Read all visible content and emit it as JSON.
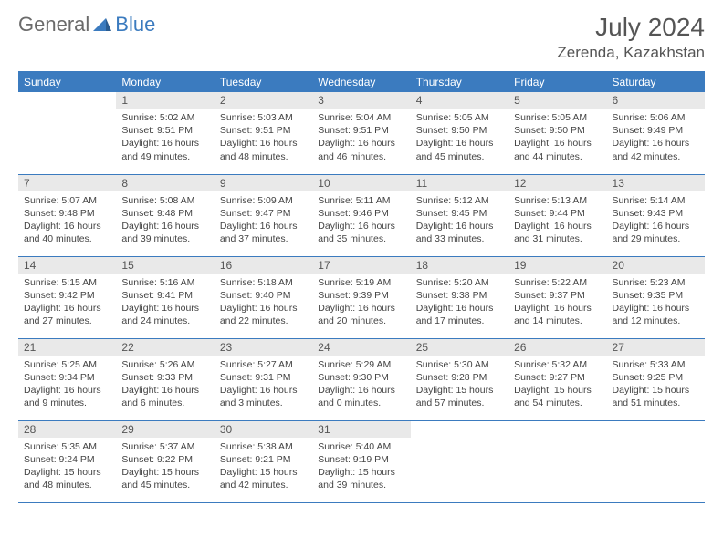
{
  "logo": {
    "text1": "General",
    "text2": "Blue"
  },
  "title": "July 2024",
  "location": "Zerenda, Kazakhstan",
  "colors": {
    "accent": "#3b7bbf",
    "header_bg": "#3b7bbf",
    "daynum_bg": "#e9e9e9",
    "text": "#444444",
    "title_text": "#555555"
  },
  "weekdays": [
    "Sunday",
    "Monday",
    "Tuesday",
    "Wednesday",
    "Thursday",
    "Friday",
    "Saturday"
  ],
  "weeks": [
    [
      null,
      {
        "d": "1",
        "sr": "Sunrise: 5:02 AM",
        "ss": "Sunset: 9:51 PM",
        "dl1": "Daylight: 16 hours",
        "dl2": "and 49 minutes."
      },
      {
        "d": "2",
        "sr": "Sunrise: 5:03 AM",
        "ss": "Sunset: 9:51 PM",
        "dl1": "Daylight: 16 hours",
        "dl2": "and 48 minutes."
      },
      {
        "d": "3",
        "sr": "Sunrise: 5:04 AM",
        "ss": "Sunset: 9:51 PM",
        "dl1": "Daylight: 16 hours",
        "dl2": "and 46 minutes."
      },
      {
        "d": "4",
        "sr": "Sunrise: 5:05 AM",
        "ss": "Sunset: 9:50 PM",
        "dl1": "Daylight: 16 hours",
        "dl2": "and 45 minutes."
      },
      {
        "d": "5",
        "sr": "Sunrise: 5:05 AM",
        "ss": "Sunset: 9:50 PM",
        "dl1": "Daylight: 16 hours",
        "dl2": "and 44 minutes."
      },
      {
        "d": "6",
        "sr": "Sunrise: 5:06 AM",
        "ss": "Sunset: 9:49 PM",
        "dl1": "Daylight: 16 hours",
        "dl2": "and 42 minutes."
      }
    ],
    [
      {
        "d": "7",
        "sr": "Sunrise: 5:07 AM",
        "ss": "Sunset: 9:48 PM",
        "dl1": "Daylight: 16 hours",
        "dl2": "and 40 minutes."
      },
      {
        "d": "8",
        "sr": "Sunrise: 5:08 AM",
        "ss": "Sunset: 9:48 PM",
        "dl1": "Daylight: 16 hours",
        "dl2": "and 39 minutes."
      },
      {
        "d": "9",
        "sr": "Sunrise: 5:09 AM",
        "ss": "Sunset: 9:47 PM",
        "dl1": "Daylight: 16 hours",
        "dl2": "and 37 minutes."
      },
      {
        "d": "10",
        "sr": "Sunrise: 5:11 AM",
        "ss": "Sunset: 9:46 PM",
        "dl1": "Daylight: 16 hours",
        "dl2": "and 35 minutes."
      },
      {
        "d": "11",
        "sr": "Sunrise: 5:12 AM",
        "ss": "Sunset: 9:45 PM",
        "dl1": "Daylight: 16 hours",
        "dl2": "and 33 minutes."
      },
      {
        "d": "12",
        "sr": "Sunrise: 5:13 AM",
        "ss": "Sunset: 9:44 PM",
        "dl1": "Daylight: 16 hours",
        "dl2": "and 31 minutes."
      },
      {
        "d": "13",
        "sr": "Sunrise: 5:14 AM",
        "ss": "Sunset: 9:43 PM",
        "dl1": "Daylight: 16 hours",
        "dl2": "and 29 minutes."
      }
    ],
    [
      {
        "d": "14",
        "sr": "Sunrise: 5:15 AM",
        "ss": "Sunset: 9:42 PM",
        "dl1": "Daylight: 16 hours",
        "dl2": "and 27 minutes."
      },
      {
        "d": "15",
        "sr": "Sunrise: 5:16 AM",
        "ss": "Sunset: 9:41 PM",
        "dl1": "Daylight: 16 hours",
        "dl2": "and 24 minutes."
      },
      {
        "d": "16",
        "sr": "Sunrise: 5:18 AM",
        "ss": "Sunset: 9:40 PM",
        "dl1": "Daylight: 16 hours",
        "dl2": "and 22 minutes."
      },
      {
        "d": "17",
        "sr": "Sunrise: 5:19 AM",
        "ss": "Sunset: 9:39 PM",
        "dl1": "Daylight: 16 hours",
        "dl2": "and 20 minutes."
      },
      {
        "d": "18",
        "sr": "Sunrise: 5:20 AM",
        "ss": "Sunset: 9:38 PM",
        "dl1": "Daylight: 16 hours",
        "dl2": "and 17 minutes."
      },
      {
        "d": "19",
        "sr": "Sunrise: 5:22 AM",
        "ss": "Sunset: 9:37 PM",
        "dl1": "Daylight: 16 hours",
        "dl2": "and 14 minutes."
      },
      {
        "d": "20",
        "sr": "Sunrise: 5:23 AM",
        "ss": "Sunset: 9:35 PM",
        "dl1": "Daylight: 16 hours",
        "dl2": "and 12 minutes."
      }
    ],
    [
      {
        "d": "21",
        "sr": "Sunrise: 5:25 AM",
        "ss": "Sunset: 9:34 PM",
        "dl1": "Daylight: 16 hours",
        "dl2": "and 9 minutes."
      },
      {
        "d": "22",
        "sr": "Sunrise: 5:26 AM",
        "ss": "Sunset: 9:33 PM",
        "dl1": "Daylight: 16 hours",
        "dl2": "and 6 minutes."
      },
      {
        "d": "23",
        "sr": "Sunrise: 5:27 AM",
        "ss": "Sunset: 9:31 PM",
        "dl1": "Daylight: 16 hours",
        "dl2": "and 3 minutes."
      },
      {
        "d": "24",
        "sr": "Sunrise: 5:29 AM",
        "ss": "Sunset: 9:30 PM",
        "dl1": "Daylight: 16 hours",
        "dl2": "and 0 minutes."
      },
      {
        "d": "25",
        "sr": "Sunrise: 5:30 AM",
        "ss": "Sunset: 9:28 PM",
        "dl1": "Daylight: 15 hours",
        "dl2": "and 57 minutes."
      },
      {
        "d": "26",
        "sr": "Sunrise: 5:32 AM",
        "ss": "Sunset: 9:27 PM",
        "dl1": "Daylight: 15 hours",
        "dl2": "and 54 minutes."
      },
      {
        "d": "27",
        "sr": "Sunrise: 5:33 AM",
        "ss": "Sunset: 9:25 PM",
        "dl1": "Daylight: 15 hours",
        "dl2": "and 51 minutes."
      }
    ],
    [
      {
        "d": "28",
        "sr": "Sunrise: 5:35 AM",
        "ss": "Sunset: 9:24 PM",
        "dl1": "Daylight: 15 hours",
        "dl2": "and 48 minutes."
      },
      {
        "d": "29",
        "sr": "Sunrise: 5:37 AM",
        "ss": "Sunset: 9:22 PM",
        "dl1": "Daylight: 15 hours",
        "dl2": "and 45 minutes."
      },
      {
        "d": "30",
        "sr": "Sunrise: 5:38 AM",
        "ss": "Sunset: 9:21 PM",
        "dl1": "Daylight: 15 hours",
        "dl2": "and 42 minutes."
      },
      {
        "d": "31",
        "sr": "Sunrise: 5:40 AM",
        "ss": "Sunset: 9:19 PM",
        "dl1": "Daylight: 15 hours",
        "dl2": "and 39 minutes."
      },
      null,
      null,
      null
    ]
  ]
}
